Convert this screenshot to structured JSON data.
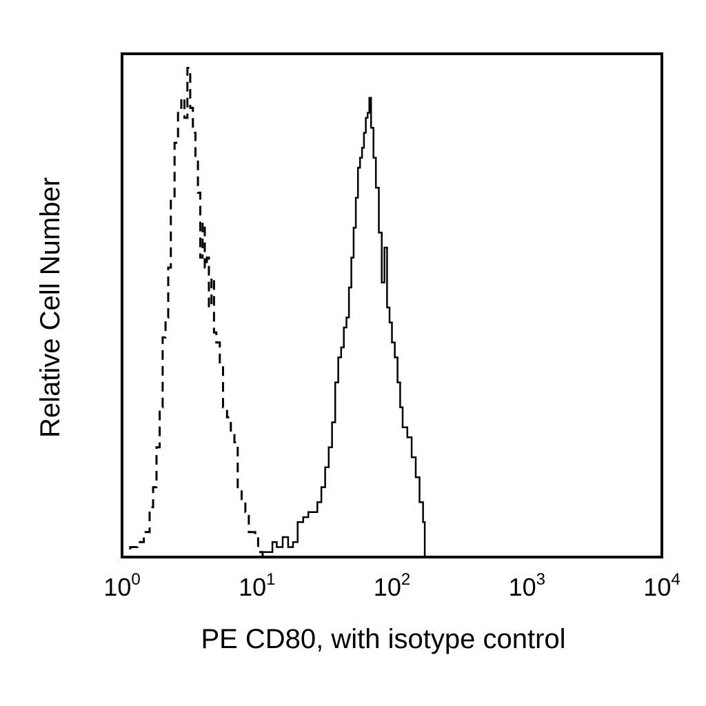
{
  "chart_data": {
    "type": "line",
    "xlabel": "PE CD80, with isotype control",
    "ylabel": "Relative Cell Number",
    "x_scale": "log",
    "xlim": [
      1,
      10000
    ],
    "ylim": [
      0,
      100
    ],
    "grid": false,
    "legend": "none",
    "x_ticks": [
      {
        "base": "10",
        "exp": "0",
        "value": 1
      },
      {
        "base": "10",
        "exp": "1",
        "value": 10
      },
      {
        "base": "10",
        "exp": "2",
        "value": 100
      },
      {
        "base": "10",
        "exp": "3",
        "value": 1000
      },
      {
        "base": "10",
        "exp": "4",
        "value": 10000
      }
    ],
    "series": [
      {
        "style": "dashed",
        "color": "#000000",
        "x": [
          1.0,
          1.15,
          1.3,
          1.45,
          1.6,
          1.7,
          1.8,
          1.9,
          2.0,
          2.1,
          2.2,
          2.3,
          2.45,
          2.6,
          2.75,
          2.9,
          3.05,
          3.2,
          3.35,
          3.5,
          3.65,
          3.8,
          3.95,
          4.1,
          4.25,
          4.4,
          4.6,
          4.8,
          5.0,
          5.3,
          5.6,
          6.0,
          6.4,
          6.8,
          7.2,
          7.7,
          8.2,
          8.7,
          9.2,
          9.7,
          10.2,
          11.0,
          12.0
        ],
        "y": [
          0,
          2,
          3,
          5,
          10,
          14,
          22,
          30,
          44,
          48,
          58,
          72,
          83,
          90,
          92,
          88,
          98,
          90,
          85,
          80,
          73,
          60,
          67,
          58,
          60,
          50,
          56,
          45,
          43,
          39,
          30,
          28,
          25,
          23,
          14,
          11,
          9,
          5,
          5,
          4,
          1,
          0,
          0
        ]
      },
      {
        "style": "solid",
        "color": "#000000",
        "x": [
          10.0,
          11.0,
          12.0,
          13.0,
          14.0,
          15.5,
          17.0,
          18.5,
          20.0,
          22.0,
          24.0,
          26.0,
          28.0,
          30.0,
          32.0,
          34.0,
          36.0,
          38.0,
          40.0,
          42.0,
          44.0,
          46.0,
          48.0,
          50.0,
          52.0,
          54.0,
          56.0,
          58.0,
          60.0,
          62.0,
          64.0,
          66.0,
          68.0,
          70.0,
          73.0,
          76.0,
          80.0,
          84.0,
          88.0,
          92.0,
          96.0,
          100.0,
          105.0,
          110.0,
          115.0,
          120.0,
          130.0,
          140.0,
          150.0,
          160.0,
          170.0,
          175.0
        ],
        "y": [
          0,
          1,
          1,
          3,
          2,
          4,
          2,
          3,
          7,
          8,
          9,
          9,
          11,
          14,
          18,
          22,
          27,
          35,
          40,
          42,
          46,
          48,
          54,
          60,
          66,
          72,
          78,
          80,
          82,
          85,
          88,
          89,
          92,
          86,
          80,
          74,
          65,
          55,
          62,
          50,
          47,
          43,
          40,
          35,
          30,
          26,
          24,
          20,
          16,
          11,
          7,
          0
        ]
      }
    ]
  }
}
